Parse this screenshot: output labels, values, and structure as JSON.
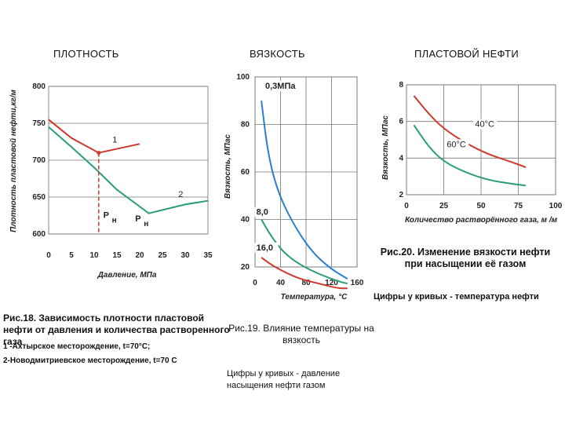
{
  "header": {
    "title_density": "ПЛОТНОСТЬ",
    "title_viscosity": "ВЯЗКОСТЬ",
    "title_reservoir_oil": "ПЛАСТОВОЙ НЕФТИ"
  },
  "chart_data": [
    {
      "type": "line",
      "id": "density",
      "xlabel": "Давление, МПа",
      "ylabel": "Плотность пластовой нефти,кг/м",
      "x_ticks": [
        0,
        5,
        10,
        15,
        20,
        25,
        30,
        35
      ],
      "y_ticks": [
        600,
        650,
        700,
        750,
        800
      ],
      "xlim": [
        0,
        35
      ],
      "ylim": [
        600,
        800
      ],
      "series": [
        {
          "name": "1",
          "color": "#d0392b",
          "x": [
            0,
            5,
            11,
            20
          ],
          "y": [
            755,
            730,
            710,
            722
          ]
        },
        {
          "name": "2",
          "color": "#2a9d7a",
          "x": [
            0,
            5,
            10,
            15,
            22,
            30,
            35
          ],
          "y": [
            745,
            718,
            690,
            660,
            628,
            640,
            645
          ]
        }
      ],
      "pb_line": {
        "x": 11,
        "y0": 710,
        "color": "#d0392b"
      },
      "markers": [
        {
          "text": "P",
          "sub": "н",
          "x": 12,
          "y": 622
        },
        {
          "text": "P",
          "sub": "н",
          "x": 19,
          "y": 617
        }
      ],
      "curve_labels": [
        "1",
        "2"
      ]
    },
    {
      "type": "line",
      "id": "viscosity_temperature",
      "xlabel": "Температура, °С",
      "ylabel": "Вязкость, МПас",
      "x_ticks": [
        0,
        40,
        80,
        120,
        160
      ],
      "y_ticks": [
        20,
        40,
        60,
        80,
        100
      ],
      "xlim": [
        0,
        160
      ],
      "ylim": [
        20,
        100
      ],
      "series": [
        {
          "name": "0,3МПа",
          "color": "#2a7fcf",
          "x": [
            10,
            20,
            35,
            60,
            90,
            120,
            145
          ],
          "y": [
            90,
            68,
            52,
            38,
            26,
            19,
            15
          ]
        },
        {
          "name": "8,0",
          "color": "#2a9d7a",
          "x": [
            10,
            25,
            45,
            70,
            100,
            130,
            145
          ],
          "y": [
            40,
            33,
            26,
            21,
            17,
            14,
            13
          ]
        },
        {
          "name": "16,0",
          "color": "#d0392b",
          "x": [
            10,
            25,
            45,
            70,
            100,
            130,
            145
          ],
          "y": [
            24,
            21,
            18,
            15,
            13,
            11,
            11
          ]
        }
      ]
    },
    {
      "type": "line",
      "id": "viscosity_gas",
      "xlabel": "Количество растворённого газа, м /м",
      "ylabel": "Вязкость, МПас",
      "x_ticks": [
        0,
        25,
        50,
        75,
        100
      ],
      "y_ticks": [
        2,
        4,
        6,
        8
      ],
      "xlim": [
        0,
        100
      ],
      "ylim": [
        2,
        8
      ],
      "series": [
        {
          "name": "40°С",
          "color": "#d0392b",
          "x": [
            5,
            15,
            25,
            40,
            55,
            70,
            80
          ],
          "y": [
            7.4,
            6.4,
            5.6,
            4.8,
            4.2,
            3.8,
            3.5
          ]
        },
        {
          "name": "60°С",
          "color": "#2a9d7a",
          "x": [
            5,
            15,
            25,
            40,
            55,
            70,
            80
          ],
          "y": [
            5.8,
            4.6,
            3.8,
            3.2,
            2.8,
            2.6,
            2.5
          ]
        }
      ]
    }
  ],
  "captions": {
    "fig18_title": "Рис.18. Зависимость плотности пластовой нефти от давления и количества растворенного газа",
    "fig18_item1": "1 -Ахтырское месторождение, t=70°С;",
    "fig18_item2": "2-Новодмитриевское месторождение, t=70 С",
    "fig19_title": "Рис.19. Влияние температуры на вязкость",
    "fig19_note": "Цифры у кривых - давление насыщения нефти газом",
    "fig20_title": "Рис.20. Изменение вязкости нефти при насыщении её газом",
    "fig20_note": "Цифры у кривых - температура нефти"
  }
}
